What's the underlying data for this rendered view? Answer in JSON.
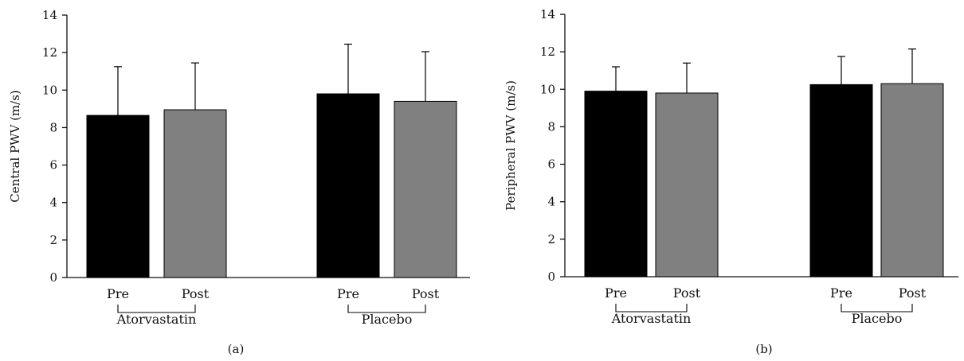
{
  "colors": {
    "pre": "#000000",
    "post": "#808080",
    "axis": "#111111"
  },
  "chart_data": [
    {
      "type": "bar",
      "panel_label": "(a)",
      "ylabel": "Central PWV (m/s)",
      "ylim": [
        0,
        14
      ],
      "yticks": [
        0,
        2,
        4,
        6,
        8,
        10,
        12,
        14
      ],
      "groups": [
        {
          "name": "Atorvastatin",
          "categories": [
            "Pre",
            "Post"
          ],
          "values": [
            8.65,
            8.95
          ],
          "errors": [
            2.6,
            2.5
          ]
        },
        {
          "name": "Placebo",
          "categories": [
            "Pre",
            "Post"
          ],
          "values": [
            9.8,
            9.4
          ],
          "errors": [
            2.65,
            2.65
          ]
        }
      ]
    },
    {
      "type": "bar",
      "panel_label": "(b)",
      "ylabel": "Peripheral PWV (m/s)",
      "ylim": [
        0,
        14
      ],
      "yticks": [
        0,
        2,
        4,
        6,
        8,
        10,
        12,
        14
      ],
      "groups": [
        {
          "name": "Atorvastatin",
          "categories": [
            "Pre",
            "Post"
          ],
          "values": [
            9.9,
            9.8
          ],
          "errors": [
            1.3,
            1.6
          ]
        },
        {
          "name": "Placebo",
          "categories": [
            "Pre",
            "Post"
          ],
          "values": [
            10.25,
            10.3
          ],
          "errors": [
            1.5,
            1.85
          ]
        }
      ]
    }
  ]
}
